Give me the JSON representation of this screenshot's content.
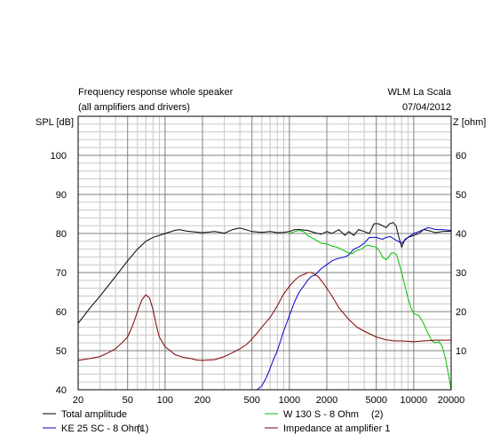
{
  "chart_data": {
    "type": "line",
    "title": "Frequency response whole speaker",
    "subtitle": "(all amplifiers and drivers)",
    "project": "WLM La Scala",
    "date": "07/04/2012",
    "ylabel": "SPL [dB]",
    "y2label": "Z [ohm]",
    "xscale": "log",
    "xlim": [
      20,
      20000
    ],
    "ylim": [
      40,
      110
    ],
    "y2lim": [
      0,
      70
    ],
    "grid": true,
    "legend_position": "bottom",
    "xticks": [
      "20",
      "50",
      "100",
      "200",
      "500",
      "1000",
      "2000",
      "5000",
      "10000",
      "20000"
    ],
    "yticks": [
      "40",
      "50",
      "60",
      "70",
      "80",
      "90",
      "100"
    ],
    "y2ticks": [
      "10",
      "20",
      "30",
      "40",
      "50",
      "60"
    ],
    "series": [
      {
        "name": "Total amplitude",
        "axis": "left",
        "color": "#000000",
        "x": [
          20,
          25,
          30,
          40,
          50,
          60,
          70,
          80,
          100,
          120,
          130,
          150,
          200,
          250,
          300,
          350,
          400,
          500,
          600,
          700,
          800,
          900,
          1000,
          1100,
          1200,
          1400,
          1600,
          1800,
          2000,
          2200,
          2500,
          2800,
          3000,
          3300,
          3600,
          4000,
          4400,
          4800,
          5200,
          5600,
          6000,
          6400,
          6800,
          7200,
          7600,
          8000,
          8500,
          9000,
          10000,
          11000,
          12000,
          13000,
          14000,
          15000,
          17000,
          20000
        ],
        "y": [
          57,
          61,
          64,
          69,
          73,
          76,
          78,
          79,
          80,
          80.8,
          81,
          80.6,
          80.2,
          80.5,
          80.1,
          81,
          81.4,
          80.5,
          80.3,
          80.5,
          80.2,
          80.3,
          80.5,
          81,
          81,
          80.8,
          80.2,
          79.8,
          80.5,
          80,
          81,
          79.5,
          80.5,
          79.5,
          81,
          80.5,
          80,
          82.5,
          82.5,
          82,
          81.5,
          82.5,
          82.8,
          82,
          79,
          76.5,
          78.5,
          79,
          79.5,
          80,
          81,
          80.8,
          80.5,
          80.2,
          80.5,
          80.6
        ]
      },
      {
        "name": "KE 25 SC - 8 Ohm",
        "label": "(1)",
        "axis": "left",
        "color": "#0000c8",
        "x": [
          20,
          200,
          500,
          550,
          600,
          650,
          700,
          750,
          800,
          900,
          1000,
          1100,
          1200,
          1300,
          1400,
          1500,
          1600,
          1800,
          2000,
          2200,
          2400,
          2600,
          2800,
          3000,
          3300,
          3600,
          4000,
          4400,
          5000,
          5600,
          6000,
          6500,
          7000,
          7500,
          8000,
          9000,
          10000,
          11000,
          12000,
          13000,
          14000,
          15000,
          17000,
          20000
        ],
        "y": [
          40,
          40,
          40,
          40,
          41,
          43,
          45.5,
          48,
          50,
          55,
          59,
          62.5,
          65,
          66.5,
          68,
          69,
          69.3,
          71,
          72,
          73,
          73.5,
          73.8,
          74,
          74.5,
          76,
          76.5,
          77.5,
          79,
          79,
          78.5,
          79,
          79.2,
          78.5,
          78,
          77.5,
          79,
          80,
          80.5,
          81,
          81.5,
          81.3,
          81,
          81,
          80.8
        ]
      },
      {
        "name": "W 130 S - 8 Ohm",
        "label": "(2)",
        "axis": "left",
        "color": "#00c000",
        "x": [
          1000,
          1100,
          1200,
          1300,
          1400,
          1600,
          1800,
          2000,
          2200,
          2400,
          2600,
          2800,
          3000,
          3200,
          3400,
          3800,
          4200,
          4600,
          5000,
          5300,
          5600,
          6000,
          6300,
          6600,
          7000,
          7300,
          7600,
          8000,
          8500,
          9000,
          9500,
          10000,
          11000,
          12000,
          13000,
          14000,
          15000,
          16000,
          17000,
          18000,
          19000,
          20000
        ],
        "y": [
          80,
          80.5,
          80.8,
          80.5,
          79.5,
          78.5,
          77.5,
          77.3,
          76.8,
          76.5,
          76,
          75.5,
          75,
          74.8,
          75.5,
          76,
          77,
          76.8,
          76.5,
          75.5,
          74,
          73.3,
          74,
          75,
          75,
          74.5,
          72.5,
          70,
          66.5,
          63.5,
          61,
          59.5,
          59,
          57,
          54.5,
          52.5,
          52,
          52.3,
          51,
          48,
          44,
          40
        ]
      },
      {
        "name": "Impedance at amplifier 1",
        "axis": "right",
        "color": "#800000",
        "x": [
          20,
          25,
          30,
          35,
          40,
          45,
          50,
          55,
          60,
          65,
          70,
          75,
          80,
          85,
          90,
          100,
          110,
          120,
          140,
          160,
          180,
          200,
          250,
          300,
          350,
          400,
          450,
          500,
          550,
          600,
          700,
          800,
          900,
          1000,
          1100,
          1200,
          1300,
          1400,
          1500,
          1600,
          1700,
          1800,
          2000,
          2200,
          2500,
          3000,
          3500,
          4000,
          5000,
          6000,
          7000,
          8000,
          10000,
          12000,
          15000,
          20000
        ],
        "y": [
          7.5,
          8,
          8.5,
          9.5,
          10.5,
          12,
          13.5,
          16.5,
          20,
          23,
          24.3,
          23.5,
          20.5,
          16.5,
          13.5,
          11,
          10,
          9,
          8.3,
          8,
          7.6,
          7.5,
          7.7,
          8.5,
          9.5,
          10.5,
          11.5,
          13,
          14.5,
          16,
          18.5,
          21.5,
          24.5,
          26.5,
          28,
          29,
          29.5,
          30,
          30,
          29.5,
          29,
          28,
          26,
          24,
          21,
          18,
          16,
          15,
          13.5,
          12.8,
          12.5,
          12.5,
          12.3,
          12.5,
          12.7,
          12.7
        ]
      }
    ]
  }
}
